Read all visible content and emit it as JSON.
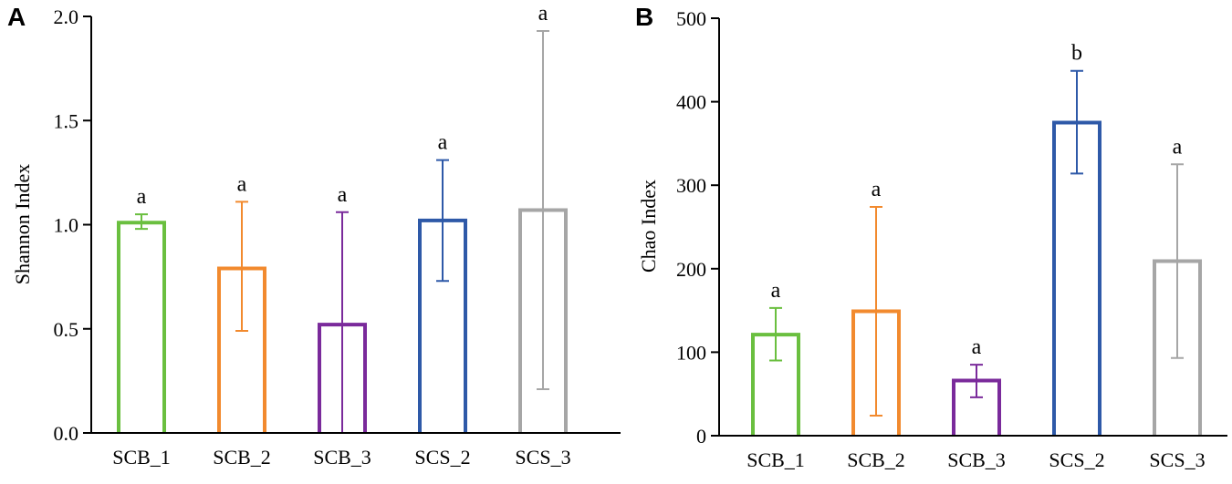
{
  "colors": {
    "SCB_1": "#6abf3f",
    "SCB_2": "#f28a2e",
    "SCB_3": "#7a2a9b",
    "SCS_2": "#2e59a8",
    "SCS_3": "#a6a6a6",
    "axis": "#000000"
  },
  "chart_data": [
    {
      "panel": "A",
      "type": "bar",
      "ylabel": "Shannon Index",
      "xlabel": "",
      "ylim": [
        0,
        2.0
      ],
      "yticks": [
        0.0,
        0.5,
        1.0,
        1.5,
        2.0
      ],
      "ytick_labels": [
        "0.0",
        "0.5",
        "1.0",
        "1.5",
        "2.0"
      ],
      "categories": [
        "SCB_1",
        "SCB_2",
        "SCB_3",
        "SCS_2",
        "SCS_3"
      ],
      "values": [
        1.01,
        0.79,
        0.52,
        1.02,
        1.07
      ],
      "error_low": [
        0.98,
        0.49,
        0.0,
        0.73,
        0.21
      ],
      "error_high": [
        1.05,
        1.11,
        1.06,
        1.31,
        1.93
      ],
      "significance": [
        "a",
        "a",
        "a",
        "a",
        "a"
      ]
    },
    {
      "panel": "B",
      "type": "bar",
      "ylabel": "Chao Index",
      "xlabel": "",
      "ylim": [
        0,
        500
      ],
      "yticks": [
        0,
        100,
        200,
        300,
        400,
        500
      ],
      "ytick_labels": [
        "0",
        "100",
        "200",
        "300",
        "400",
        "500"
      ],
      "categories": [
        "SCB_1",
        "SCB_2",
        "SCB_3",
        "SCS_2",
        "SCS_3"
      ],
      "values": [
        121,
        149,
        66,
        375,
        209
      ],
      "error_low": [
        90,
        24,
        46,
        314,
        93
      ],
      "error_high": [
        153,
        274,
        85,
        437,
        325
      ],
      "significance": [
        "a",
        "a",
        "a",
        "b",
        "a"
      ]
    }
  ]
}
